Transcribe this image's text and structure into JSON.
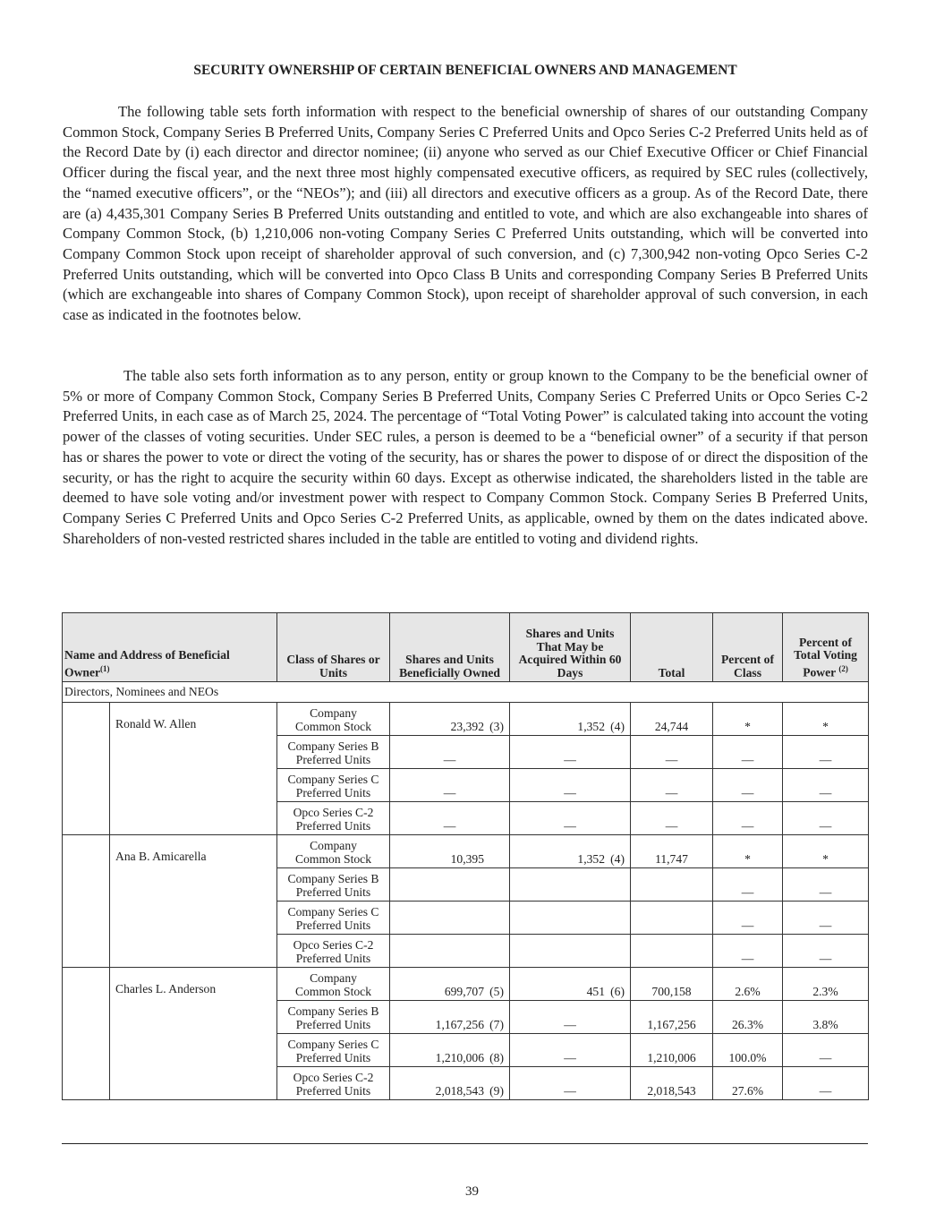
{
  "title": "SECURITY OWNERSHIP OF CERTAIN BENEFICIAL OWNERS AND MANAGEMENT",
  "paragraphs": [
    "The following table sets forth information with respect to the beneficial ownership of shares of our outstanding Company Common Stock, Company Series B Preferred Units, Company Series C Preferred Units and Opco Series C-2 Preferred Units held as of the Record Date by (i) each director and director nominee; (ii) anyone who served as our Chief Executive Officer or Chief Financial Officer during the fiscal year, and the next three most highly compensated executive officers, as required by SEC rules (collectively, the “named executive officers”, or the “NEOs”); and (iii) all directors and executive officers as a group. As of the Record Date, there are (a) 4,435,301 Company Series B Preferred Units outstanding and entitled to vote, and which are also exchangeable into shares of Company Common Stock, (b) 1,210,006 non-voting Company Series C Preferred Units outstanding, which will be converted into Company Common Stock upon receipt of shareholder approval of such conversion, and (c) 7,300,942 non-voting Opco Series C-2 Preferred Units outstanding, which will be converted into Opco Class B Units and corresponding Company Series B Preferred Units (which are exchangeable into shares of Company Common Stock), upon receipt of shareholder approval of such conversion, in each case as indicated in the footnotes below.",
    "The table also sets forth information as to any person, entity or group known to the Company to be the beneficial owner of 5% or more of Company Common Stock, Company Series B Preferred Units, Company Series C Preferred Units or Opco Series C-2 Preferred Units, in each case as of March 25, 2024. The percentage of “Total Voting Power” is calculated taking into account the voting power of the classes of voting securities. Under SEC rules, a person is deemed to be a “beneficial owner” of a security if that person has or shares the power to vote or direct the voting of the security, has or shares the power to dispose of or direct the disposition of the security, or has the right to acquire the security within 60 days. Except as otherwise indicated, the shareholders listed in the table are deemed to have sole voting and/or investment power with respect to Company Common Stock. Company Series B Preferred Units, Company Series C Preferred Units and Opco Series C-2 Preferred Units, as applicable, owned by them on the dates indicated above. Shareholders of non-vested restricted shares included in the table are entitled to voting and dividend rights."
  ],
  "table": {
    "headers": {
      "name": "Name and Address of Beneficial Owner",
      "name_fn": "(1)",
      "class": "Class of Shares or Units",
      "owned": "Shares and Units Beneficially Owned",
      "acquire": "Shares and Units That May be Acquired Within 60 Days",
      "total": "Total",
      "pct_class": "Percent of Class",
      "pct_vote": "Percent of Total Voting Power",
      "pct_vote_fn": "(2)"
    },
    "section": "Directors, Nominees and NEOs",
    "owners": [
      {
        "name": "Ronald W. Allen",
        "rows": [
          {
            "class": [
              "Company",
              "Common Stock"
            ],
            "owned": "23,392",
            "owned_fn": "(3)",
            "acquire": "1,352",
            "acquire_fn": "(4)",
            "total": "24,744",
            "pct_class": "*",
            "pct_vote": "*"
          },
          {
            "class": [
              "Company Series B",
              "Preferred Units"
            ],
            "owned": "—",
            "acquire": "—",
            "total": "—",
            "pct_class": "—",
            "pct_vote": "—"
          },
          {
            "class": [
              "Company Series C",
              "Preferred Units"
            ],
            "owned": "—",
            "acquire": "—",
            "total": "—",
            "pct_class": "—",
            "pct_vote": "—"
          },
          {
            "class": [
              "Opco Series C-2",
              "Preferred Units"
            ],
            "owned": "—",
            "acquire": "—",
            "total": "—",
            "pct_class": "—",
            "pct_vote": "—"
          }
        ]
      },
      {
        "name": "Ana B. Amicarella",
        "rows": [
          {
            "class": [
              "Company",
              "Common Stock"
            ],
            "owned": "10,395",
            "acquire": "1,352",
            "acquire_fn": "(4)",
            "total": "11,747",
            "pct_class": "*",
            "pct_vote": "*"
          },
          {
            "class": [
              "Company Series B",
              "Preferred Units"
            ],
            "pct_class": "—",
            "pct_vote": "—"
          },
          {
            "class": [
              "Company Series C",
              "Preferred Units"
            ],
            "pct_class": "—",
            "pct_vote": "—"
          },
          {
            "class": [
              "Opco Series C-2",
              "Preferred Units"
            ],
            "pct_class": "—",
            "pct_vote": "—"
          }
        ]
      },
      {
        "name": "Charles L. Anderson",
        "rows": [
          {
            "class": [
              "Company",
              "Common Stock"
            ],
            "owned": "699,707",
            "owned_fn": "(5)",
            "acquire": "451",
            "acquire_fn": "(6)",
            "total": "700,158",
            "pct_class": "2.6%",
            "pct_vote": "2.3%"
          },
          {
            "class": [
              "Company Series B",
              "Preferred Units"
            ],
            "owned": "1,167,256",
            "owned_fn": "(7)",
            "acquire": "—",
            "total": "1,167,256",
            "pct_class": "26.3%",
            "pct_vote": "3.8%"
          },
          {
            "class": [
              "Company Series C",
              "Preferred Units"
            ],
            "owned": "1,210,006",
            "owned_fn": "(8)",
            "acquire": "—",
            "total": "1,210,006",
            "pct_class": "100.0%",
            "pct_vote": "—"
          },
          {
            "class": [
              "Opco Series C-2",
              "Preferred Units"
            ],
            "owned": "2,018,543",
            "owned_fn": "(9)",
            "acquire": "—",
            "total": "2,018,543",
            "pct_class": "27.6%",
            "pct_vote": "—"
          }
        ]
      }
    ]
  },
  "page_number": "39"
}
